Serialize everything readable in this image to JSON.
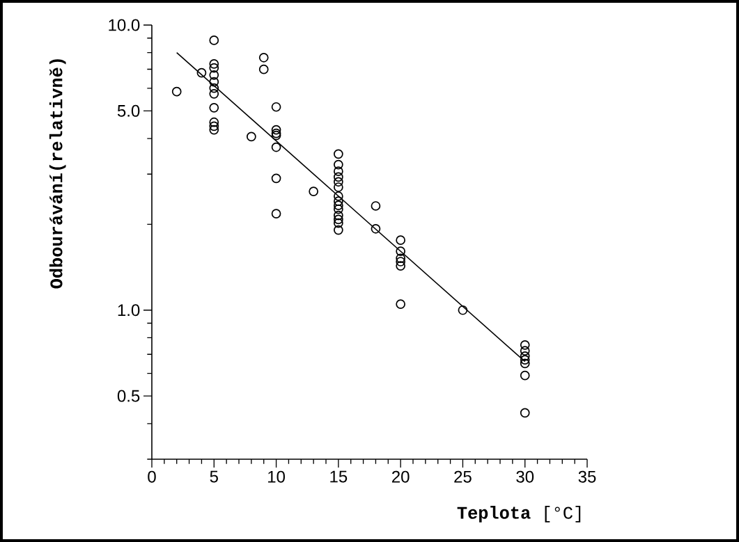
{
  "chart_data": {
    "type": "scatter",
    "xlabel": "**Teplota**    [°C]",
    "ylabel": "Odbourávání(relativně)",
    "log": "y",
    "grid": false,
    "xlim": [
      0,
      35
    ],
    "xticks": [
      0,
      {
        "value": 1,
        "label": null
      },
      {
        "value": 2,
        "label": null
      },
      {
        "value": 3,
        "label": null
      },
      {
        "value": 4,
        "label": null
      },
      5,
      {
        "value": 6,
        "label": null
      },
      {
        "value": 7,
        "label": null
      },
      {
        "value": 8,
        "label": null
      },
      {
        "value": 9,
        "label": null
      },
      10,
      {
        "value": 11,
        "label": null
      },
      {
        "value": 12,
        "label": null
      },
      {
        "value": 13,
        "label": null
      },
      {
        "value": 14,
        "label": null
      },
      15,
      {
        "value": 16,
        "label": null
      },
      {
        "value": 17,
        "label": null
      },
      {
        "value": 18,
        "label": null
      },
      {
        "value": 19,
        "label": null
      },
      20,
      {
        "value": 21,
        "label": null
      },
      {
        "value": 22,
        "label": null
      },
      {
        "value": 23,
        "label": null
      },
      {
        "value": 24,
        "label": null
      },
      25,
      {
        "value": 26,
        "label": null
      },
      {
        "value": 27,
        "label": null
      },
      {
        "value": 28,
        "label": null
      },
      {
        "value": 29,
        "label": null
      },
      30,
      {
        "value": 31,
        "label": null
      },
      {
        "value": 32,
        "label": null
      },
      {
        "value": 33,
        "label": null
      },
      {
        "value": 34,
        "label": null
      },
      35
    ],
    "ylim": [
      0.3,
      10
    ],
    "yticks": [
      {
        "value": 0.3,
        "label": null
      },
      {
        "value": 0.4,
        "label": null
      },
      {
        "value": 0.5,
        "label": "0.5"
      },
      {
        "value": 0.6,
        "label": null
      },
      {
        "value": 0.7,
        "label": null
      },
      {
        "value": 0.8,
        "label": null
      },
      {
        "value": 0.9,
        "label": null
      },
      {
        "value": 1,
        "label": "1.0"
      },
      {
        "value": 2,
        "label": null
      },
      {
        "value": 3,
        "label": null
      },
      {
        "value": 4,
        "label": null
      },
      {
        "value": 5,
        "label": "5.0"
      },
      {
        "value": 6,
        "label": null
      },
      {
        "value": 7,
        "label": null
      },
      {
        "value": 8,
        "label": null
      },
      {
        "value": 9,
        "label": null
      },
      {
        "value": 10,
        "label": "10.0"
      }
    ],
    "series": [
      {
        "marker": "circle",
        "color": "#000000",
        "x": [
          2,
          4,
          5,
          5,
          5,
          5,
          5,
          5,
          5,
          5,
          5,
          5,
          5,
          8,
          9,
          9,
          10,
          10,
          10,
          10,
          10,
          10,
          10,
          13,
          15,
          15,
          15,
          15,
          15,
          15,
          15,
          15,
          15,
          15,
          15,
          15,
          15,
          15,
          18,
          18,
          20,
          20,
          20,
          20,
          20,
          20,
          25,
          30,
          30,
          30,
          30,
          30,
          30,
          30
        ],
        "values": [
          5.84,
          6.8,
          8.84,
          7.31,
          7.07,
          6.68,
          6.32,
          6.01,
          5.74,
          5.13,
          4.56,
          4.42,
          4.29,
          4.06,
          7.69,
          6.99,
          5.16,
          4.29,
          4.17,
          4.1,
          3.73,
          2.9,
          2.18,
          2.61,
          3.53,
          3.24,
          3.07,
          2.93,
          2.82,
          2.7,
          2.51,
          2.41,
          2.33,
          2.26,
          2.15,
          2.08,
          2.02,
          1.91,
          2.32,
          1.93,
          1.76,
          1.61,
          1.52,
          1.48,
          1.43,
          1.05,
          1.0,
          0.755,
          0.72,
          0.69,
          0.67,
          0.65,
          0.59,
          0.436
        ]
      },
      {
        "type": "line",
        "marker": "none",
        "line_style": "solid",
        "color": "#000000",
        "x": [
          2,
          30
        ],
        "values": [
          8.0,
          0.66
        ]
      }
    ]
  }
}
